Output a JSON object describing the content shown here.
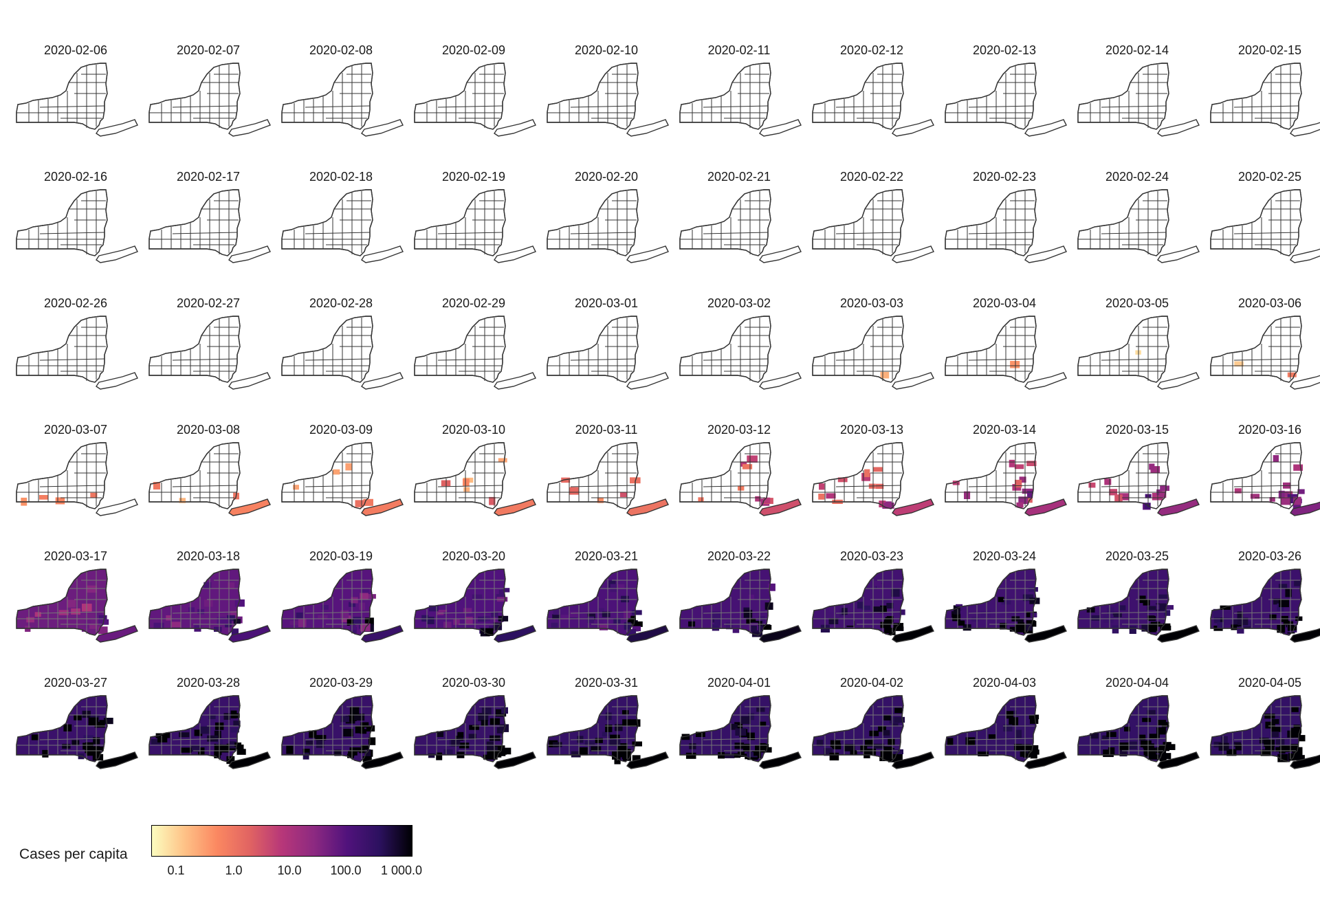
{
  "dates": [
    "2020-02-06",
    "2020-02-07",
    "2020-02-08",
    "2020-02-09",
    "2020-02-10",
    "2020-02-11",
    "2020-02-12",
    "2020-02-13",
    "2020-02-14",
    "2020-02-15",
    "2020-02-16",
    "2020-02-17",
    "2020-02-18",
    "2020-02-19",
    "2020-02-20",
    "2020-02-21",
    "2020-02-22",
    "2020-02-23",
    "2020-02-24",
    "2020-02-25",
    "2020-02-26",
    "2020-02-27",
    "2020-02-28",
    "2020-02-29",
    "2020-03-01",
    "2020-03-02",
    "2020-03-03",
    "2020-03-04",
    "2020-03-05",
    "2020-03-06",
    "2020-03-07",
    "2020-03-08",
    "2020-03-09",
    "2020-03-10",
    "2020-03-11",
    "2020-03-12",
    "2020-03-13",
    "2020-03-14",
    "2020-03-15",
    "2020-03-16",
    "2020-03-17",
    "2020-03-18",
    "2020-03-19",
    "2020-03-20",
    "2020-03-21",
    "2020-03-22",
    "2020-03-23",
    "2020-03-24",
    "2020-03-25",
    "2020-03-26",
    "2020-03-27",
    "2020-03-28",
    "2020-03-29",
    "2020-03-30",
    "2020-03-31",
    "2020-04-01",
    "2020-04-02",
    "2020-04-03",
    "2020-04-04",
    "2020-04-05"
  ],
  "fill_level": [
    0,
    0,
    0,
    0,
    0,
    0,
    0,
    0,
    0,
    0,
    0,
    0,
    0,
    0,
    0,
    0,
    0,
    0,
    0,
    0,
    0,
    0,
    0,
    0,
    0,
    0,
    0.02,
    0.04,
    0.06,
    0.08,
    0.1,
    0.12,
    0.14,
    0.15,
    0.17,
    0.28,
    0.33,
    0.4,
    0.45,
    0.5,
    0.55,
    0.62,
    0.68,
    0.72,
    0.76,
    0.82,
    0.86,
    0.88,
    0.9,
    0.92,
    0.94,
    0.95,
    0.96,
    0.97,
    0.98,
    0.985,
    0.99,
    0.995,
    1.0,
    1.0
  ],
  "legend": {
    "title": "Cases per capita",
    "ticks": [
      "0.1",
      "1.0",
      "10.0",
      "100.0",
      "1 000.0"
    ],
    "scale": "log",
    "colors": [
      "#fcfdbf",
      "#fec287",
      "#fb8861",
      "#e16462",
      "#b73779",
      "#8c2981",
      "#51127c",
      "#2c115f",
      "#000004"
    ]
  }
}
